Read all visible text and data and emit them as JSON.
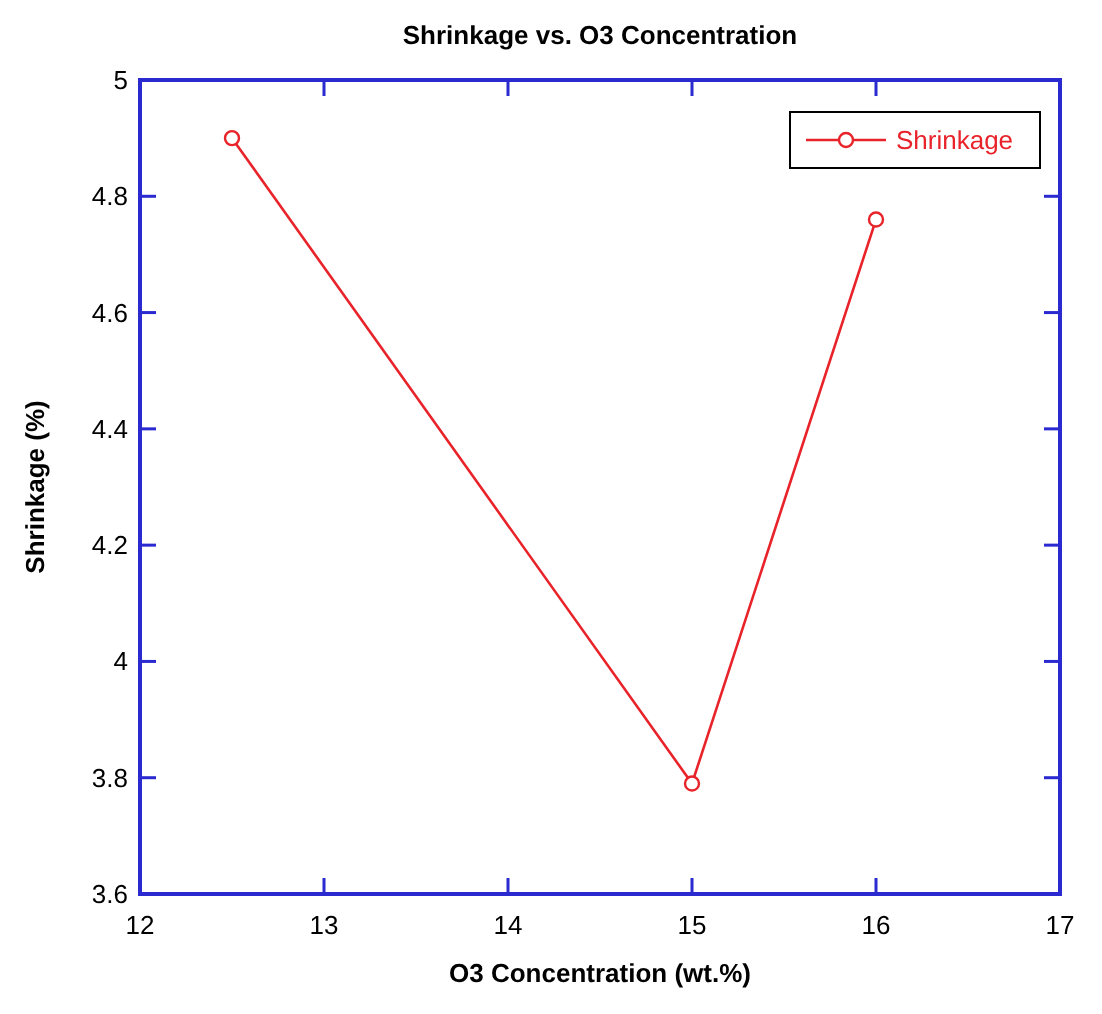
{
  "chart_data": {
    "type": "line",
    "title": "Shrinkage vs. O3 Concentration",
    "xlabel": "O3 Concentration (wt.%)",
    "ylabel": "Shrinkage (%)",
    "x": [
      12.5,
      15,
      16
    ],
    "series": [
      {
        "name": "Shrinkage",
        "color": "#e8232a",
        "values": [
          4.9,
          3.79,
          4.76
        ]
      }
    ],
    "xlim": [
      12,
      17
    ],
    "xticks": [
      12,
      13,
      14,
      15,
      16,
      17
    ],
    "ylim": [
      3.6,
      5
    ],
    "yticks": [
      3.6,
      3.8,
      4,
      4.2,
      4.4,
      4.6,
      4.8,
      5
    ],
    "legend": "top right",
    "marker": "circle",
    "line_style": "solid",
    "grid": false
  }
}
